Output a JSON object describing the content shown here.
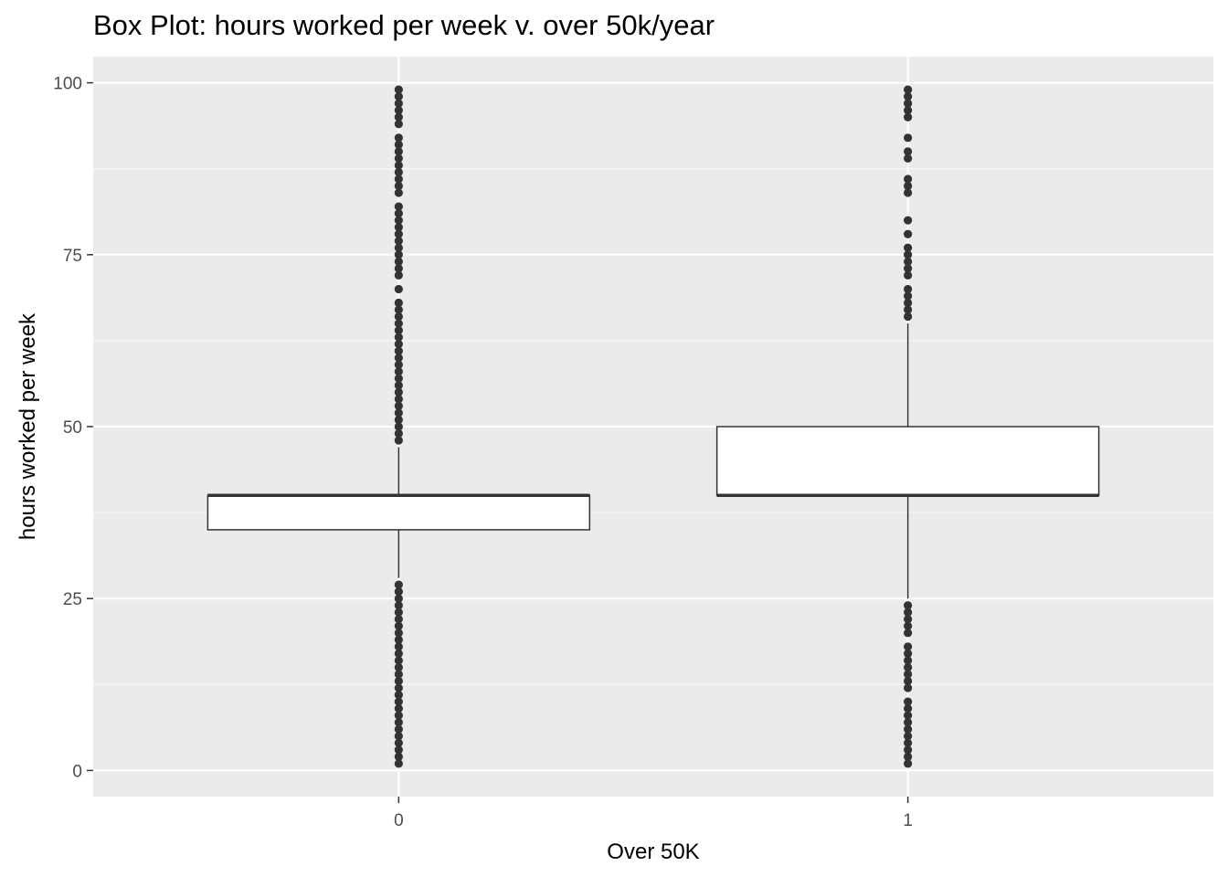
{
  "chart_data": {
    "type": "box",
    "title": "Box Plot: hours worked per week v. over 50k/year",
    "xlabel": "Over 50K",
    "ylabel": "hours worked per week",
    "categories": [
      "0",
      "1"
    ],
    "ylim": [
      -3.8,
      103.8
    ],
    "yticks": [
      0,
      25,
      50,
      75,
      100
    ],
    "grid": true,
    "colors": {
      "panel": "#ebebeb",
      "grid_major": "#ffffff",
      "box_fill": "#ffffff",
      "box_line": "#333333",
      "outlier": "#333333",
      "tick_text": "#4d4d4d"
    },
    "boxes": [
      {
        "category": "0",
        "min": 28,
        "q1": 35,
        "median": 40,
        "q3": 40,
        "max": 47,
        "outliers": [
          1,
          2,
          3,
          4,
          5,
          6,
          7,
          8,
          9,
          10,
          11,
          12,
          13,
          14,
          15,
          16,
          17,
          18,
          19,
          20,
          21,
          22,
          23,
          24,
          25,
          26,
          27,
          48,
          49,
          50,
          51,
          52,
          53,
          54,
          55,
          56,
          57,
          58,
          59,
          60,
          61,
          62,
          63,
          64,
          65,
          66,
          67,
          68,
          70,
          72,
          73,
          74,
          75,
          76,
          77,
          78,
          79,
          80,
          81,
          82,
          84,
          85,
          86,
          87,
          88,
          89,
          90,
          91,
          92,
          94,
          95,
          96,
          97,
          98,
          99
        ]
      },
      {
        "category": "1",
        "min": 25,
        "q1": 40,
        "median": 40,
        "q3": 50,
        "max": 65,
        "outliers": [
          1,
          2,
          3,
          4,
          5,
          6,
          7,
          8,
          9,
          10,
          12,
          13,
          14,
          15,
          16,
          17,
          18,
          20,
          21,
          22,
          23,
          24,
          66,
          67,
          68,
          69,
          70,
          72,
          73,
          74,
          75,
          76,
          78,
          80,
          84,
          85,
          86,
          89,
          90,
          92,
          95,
          96,
          97,
          98,
          99
        ]
      }
    ]
  }
}
